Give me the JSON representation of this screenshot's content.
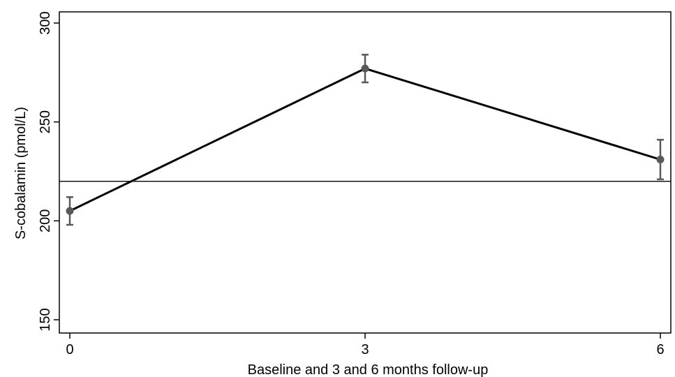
{
  "chart_data": {
    "type": "line",
    "title": "",
    "xlabel": "Baseline and 3 and 6 months follow-up",
    "ylabel": "S-cobalamin (pmol/L)",
    "x": [
      0,
      3,
      6
    ],
    "xticks": [
      "0",
      "3",
      "6"
    ],
    "xlim": [
      0,
      6
    ],
    "yticks": [
      "150",
      "200",
      "250",
      "300"
    ],
    "ylim": [
      145,
      300
    ],
    "series": [
      {
        "values": [
          205,
          277,
          231
        ],
        "lower": [
          198,
          270,
          221
        ],
        "upper": [
          212,
          284,
          241
        ]
      }
    ],
    "reference_line": {
      "y": 220
    },
    "grid": false,
    "legend": "none",
    "colors": {
      "line": "#000000",
      "marker": "#595959",
      "errorbar": "#595959",
      "axis": "#000000",
      "reference": "#000000"
    }
  }
}
